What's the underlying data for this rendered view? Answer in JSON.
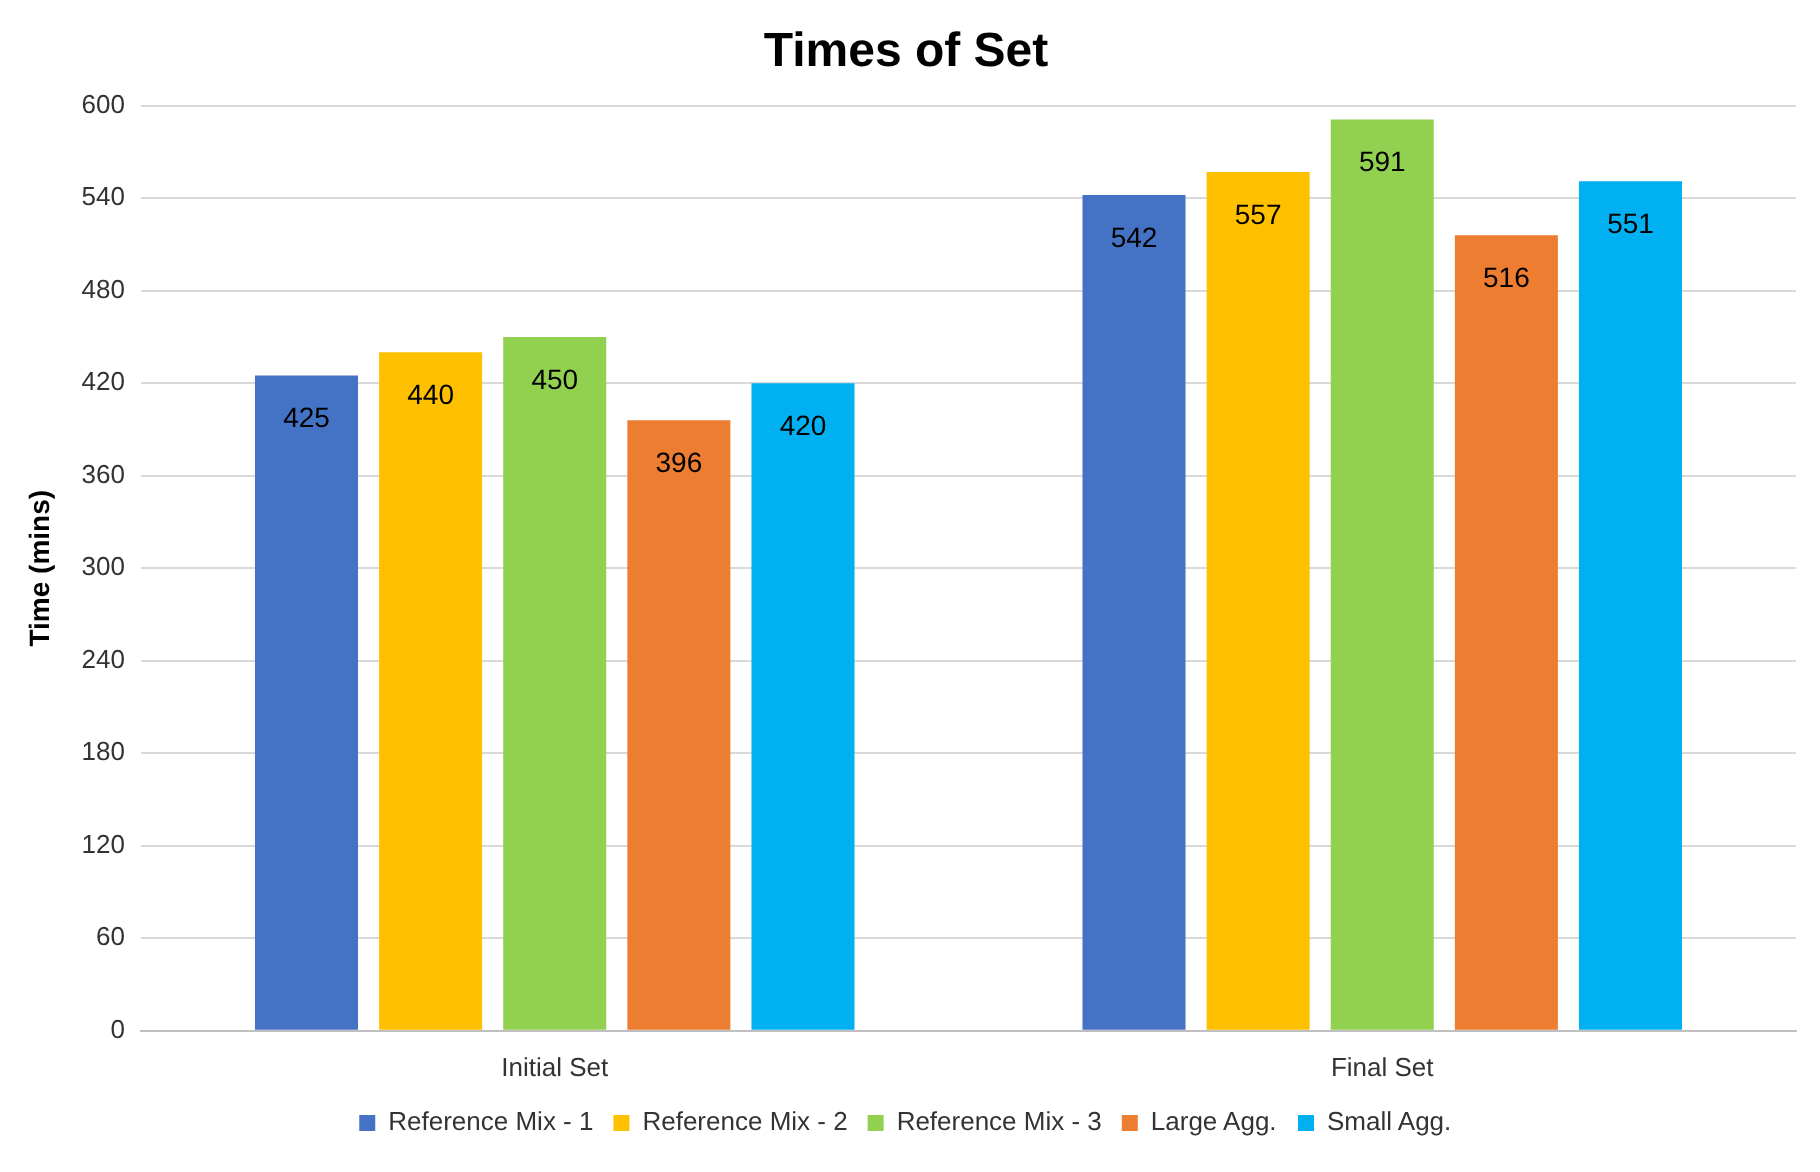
{
  "chart_data": {
    "type": "bar",
    "title": "Times of Set",
    "ylabel": "Time (mins)",
    "categories": [
      "Initial Set",
      "Final Set"
    ],
    "series": [
      {
        "name": "Reference Mix - 1",
        "color": "#4472c4",
        "values": [
          425,
          542
        ]
      },
      {
        "name": "Reference Mix - 2",
        "color": "#ffc000",
        "values": [
          440,
          557
        ]
      },
      {
        "name": "Reference Mix - 3",
        "color": "#92d050",
        "values": [
          450,
          591
        ]
      },
      {
        "name": "Large Agg.",
        "color": "#ed7d31",
        "values": [
          396,
          516
        ]
      },
      {
        "name": "Small Agg.",
        "color": "#00b0f0",
        "values": [
          420,
          551
        ]
      }
    ],
    "ylim": [
      0,
      600
    ],
    "yticks": [
      0,
      60,
      120,
      180,
      240,
      300,
      360,
      420,
      480,
      540,
      600
    ],
    "grid": "y",
    "legend": "bottom",
    "data_labels": true
  }
}
